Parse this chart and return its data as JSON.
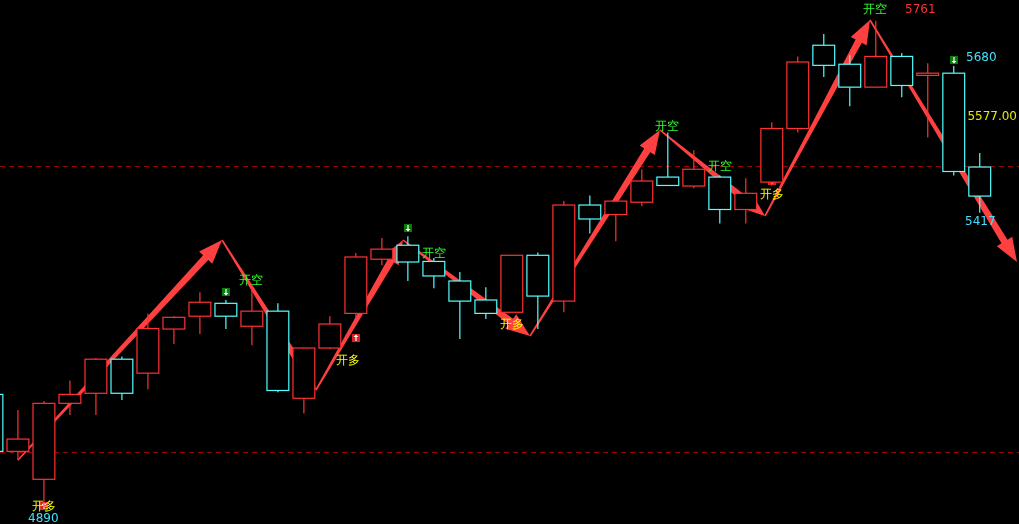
{
  "chart_data": {
    "type": "candlestick",
    "categories": [
      null,
      null,
      null,
      null,
      null,
      null,
      null,
      null,
      null,
      null,
      null,
      null,
      null,
      null,
      null,
      null,
      null,
      null,
      null,
      null,
      null,
      null,
      null,
      null,
      null,
      null,
      null,
      null,
      null,
      null,
      null,
      null,
      null,
      null,
      null,
      null,
      null,
      null,
      null
    ],
    "ohlc": [
      [
        5092,
        5092,
        4990,
        4990
      ],
      [
        4990,
        5064,
        4974,
        5012
      ],
      [
        4940,
        5080,
        4890,
        5076
      ],
      [
        5076,
        5117,
        5055,
        5092
      ],
      [
        5094,
        5157,
        5055,
        5155
      ],
      [
        5155,
        5160,
        5082,
        5094
      ],
      [
        5130,
        5237,
        5101,
        5210
      ],
      [
        5209,
        5232,
        5182,
        5230
      ],
      [
        5232,
        5275,
        5200,
        5257
      ],
      [
        5255,
        5261,
        5209,
        5232
      ],
      [
        5214,
        5284,
        5180,
        5241
      ],
      [
        5241,
        5255,
        5096,
        5099
      ],
      [
        5085,
        5176,
        5058,
        5175
      ],
      [
        5175,
        5232,
        5173,
        5218
      ],
      [
        5237,
        5345,
        5228,
        5338
      ],
      [
        5334,
        5372,
        5323,
        5352
      ],
      [
        5359,
        5375,
        5295,
        5329
      ],
      [
        5330,
        5336,
        5282,
        5304
      ],
      [
        5295,
        5311,
        5191,
        5259
      ],
      [
        5261,
        5284,
        5227,
        5237
      ],
      [
        5239,
        5341,
        5239,
        5341
      ],
      [
        5341,
        5346,
        5209,
        5268
      ],
      [
        5259,
        5438,
        5239,
        5431
      ],
      [
        5431,
        5448,
        5380,
        5406
      ],
      [
        5414,
        5438,
        5366,
        5438
      ],
      [
        5436,
        5495,
        5429,
        5474
      ],
      [
        5481,
        5561,
        5465,
        5466
      ],
      [
        5465,
        5529,
        5461,
        5495
      ],
      [
        5481,
        5484,
        5398,
        5423
      ],
      [
        5423,
        5479,
        5398,
        5452
      ],
      [
        5472,
        5579,
        5466,
        5568
      ],
      [
        5568,
        5697,
        5561,
        5687
      ],
      [
        5717,
        5737,
        5660,
        5681
      ],
      [
        5683,
        5699,
        5608,
        5642
      ],
      [
        5642,
        5761,
        5642,
        5697
      ],
      [
        5697,
        5703,
        5624,
        5645
      ],
      [
        5663,
        5685,
        5552,
        5667
      ],
      [
        5667,
        5680,
        5484,
        5491
      ],
      [
        5499,
        5524,
        5417,
        5447
      ]
    ],
    "colors": [
      "#54ffff",
      "#ff3232",
      "#ff3232",
      "#ff3232",
      "#ff3232",
      "#54ffff",
      "#ff3232",
      "#ff3232",
      "#ff3232",
      "#54ffff",
      "#ff3232",
      "#54ffff",
      "#ff3232",
      "#ff3232",
      "#ff3232",
      "#ff3232",
      "#54ffff",
      "#54ffff",
      "#54ffff",
      "#54ffff",
      "#ff3232",
      "#54ffff",
      "#ff3232",
      "#54ffff",
      "#ff3232",
      "#ff3232",
      "#54ffff",
      "#ff3232",
      "#54ffff",
      "#ff3232",
      "#ff3232",
      "#ff3232",
      "#54ffff",
      "#54ffff",
      "#ff3232",
      "#54ffff",
      "#ff3232",
      "#54ffff",
      "#54ffff"
    ],
    "ylim": [
      4860,
      5798
    ],
    "ref_lines": [
      {
        "axis": "y",
        "value": 5500,
        "color": "#a00000",
        "line_style": "dashed"
      },
      {
        "axis": "y",
        "value": 4988,
        "color": "#a00000",
        "line_style": "dashed"
      }
    ],
    "annotations": [
      "开多",
      "开空",
      "开多",
      "开空",
      "开多",
      "开空",
      "开空",
      "开多",
      "开空",
      "5761",
      "5680",
      "5577.00",
      "5417",
      "4890"
    ]
  }
}
